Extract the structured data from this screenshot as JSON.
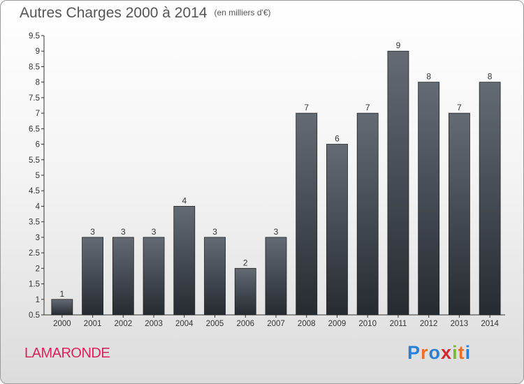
{
  "header": {
    "title": "Autres Charges 2000 à 2014",
    "unit": "(en milliers d'€)"
  },
  "footer": {
    "commune": "LAMARONDE",
    "logo": [
      "P",
      "r",
      "o",
      "x",
      "i",
      "t",
      "i"
    ]
  },
  "colors": {
    "bar_top": "#646b73",
    "bar_bottom": "#262b31",
    "commune": "#d8245c",
    "logo": [
      "#2b7fd6",
      "#e8702a",
      "#2b7fd6",
      "#d6262e",
      "#7ab82c",
      "#e8702a",
      "#2b7fd6"
    ]
  },
  "chart_data": {
    "type": "bar",
    "title": "Autres Charges 2000 à 2014",
    "subtitle": "(en milliers d'€)",
    "categories": [
      "2000",
      "2001",
      "2002",
      "2003",
      "2004",
      "2005",
      "2006",
      "2007",
      "2008",
      "2009",
      "2010",
      "2011",
      "2012",
      "2013",
      "2014"
    ],
    "values": [
      1,
      3,
      3,
      3,
      4,
      3,
      2,
      3,
      7,
      6,
      7,
      9,
      8,
      7,
      8
    ],
    "data_labels": [
      "1",
      "3",
      "3",
      "3",
      "4",
      "3",
      "2",
      "3",
      "7",
      "6",
      "7",
      "9",
      "8",
      "7",
      "8"
    ],
    "ylim": [
      0.5,
      9.5
    ],
    "yticks": [
      "0.5",
      "1",
      "1.5",
      "2",
      "2.5",
      "3",
      "3.5",
      "4",
      "4.5",
      "5",
      "5.5",
      "6",
      "6.5",
      "7",
      "7.5",
      "8",
      "8.5",
      "9",
      "9.5"
    ],
    "grid": false,
    "legend": "none"
  }
}
